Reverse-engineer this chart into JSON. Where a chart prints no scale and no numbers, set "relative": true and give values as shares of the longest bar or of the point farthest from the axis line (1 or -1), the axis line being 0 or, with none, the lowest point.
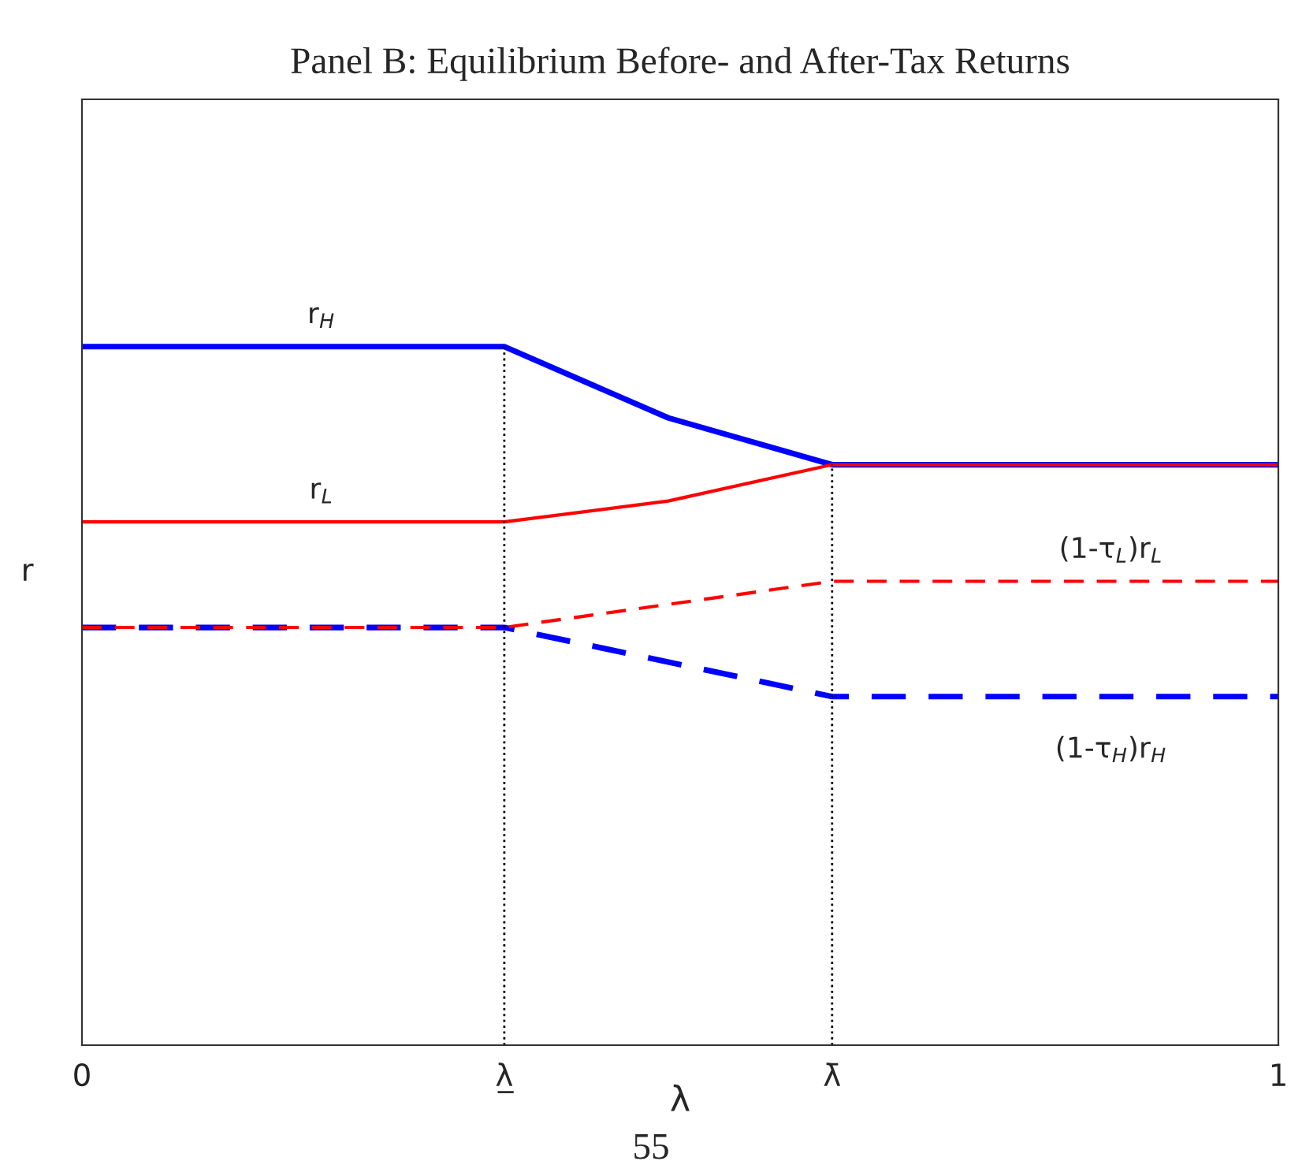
{
  "chart_data": {
    "type": "line",
    "title": "Panel B: Equilibrium Before- and After-Tax Returns",
    "xlabel": "λ",
    "ylabel": "r",
    "relative": true,
    "xlim": [
      0,
      1
    ],
    "xticks": [
      {
        "value": 0,
        "label": "0"
      },
      {
        "value": 0.353,
        "label": "λ̲"
      },
      {
        "value": 0.627,
        "label": "λ̄"
      },
      {
        "value": 1,
        "label": "1"
      }
    ],
    "series": [
      {
        "name": "r$_{H}$",
        "color": "#0000ff",
        "line_style": "solid",
        "x": [
          0,
          0.353,
          0.49,
          0.627,
          1
        ],
        "values": [
          1,
          1,
          0.898,
          0.831,
          0.831
        ]
      },
      {
        "name": "r$_{L}$",
        "color": "#ff0000",
        "line_style": "solid",
        "x": [
          0,
          0.353,
          0.49,
          0.627,
          1
        ],
        "values": [
          0.749,
          0.749,
          0.779,
          0.831,
          0.831
        ]
      },
      {
        "name": "(1-τ$_{H}$)r$_{H}$",
        "color": "#0000ff",
        "line_style": "dashed",
        "x": [
          0,
          0.353,
          0.627,
          1
        ],
        "values": [
          0.598,
          0.598,
          0.499,
          0.499
        ]
      },
      {
        "name": "(1-τ$_{L}$)r$_{L}$",
        "color": "#ff0000",
        "line_style": "dashed",
        "x": [
          0,
          0.353,
          0.627,
          1
        ],
        "values": [
          0.598,
          0.598,
          0.664,
          0.664
        ]
      }
    ],
    "ref_lines": [
      {
        "axis": "x",
        "value": 0.353,
        "color": "#000000",
        "line_style": "dotted"
      },
      {
        "axis": "x",
        "value": 0.627,
        "color": "#000000",
        "line_style": "dotted"
      }
    ],
    "annotations": [
      "55"
    ]
  }
}
